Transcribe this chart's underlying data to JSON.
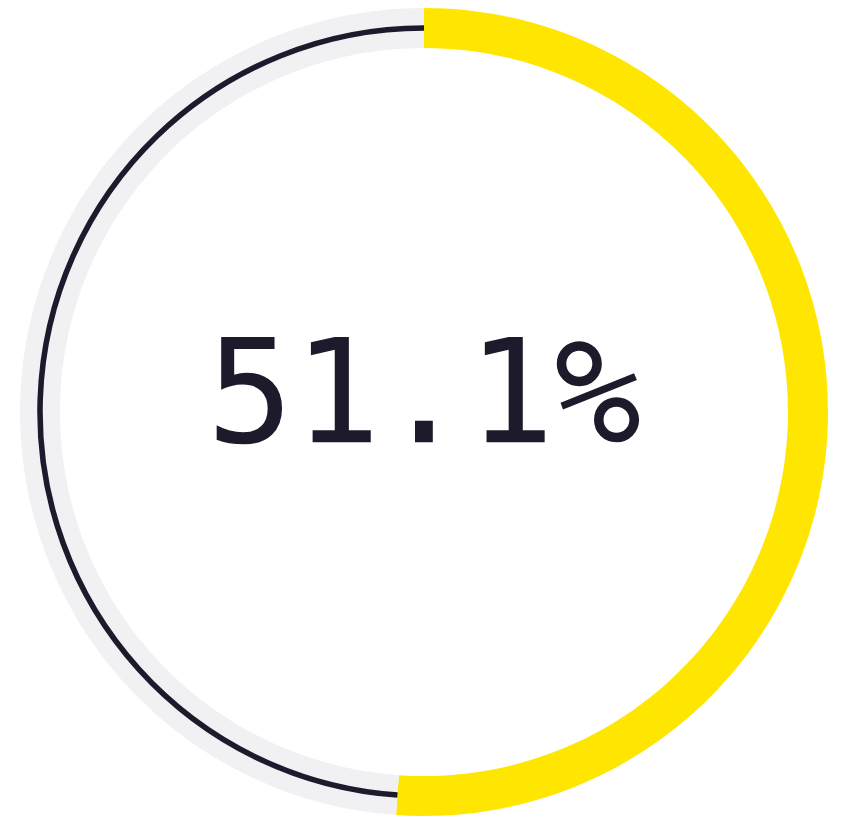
{
  "chart_data": {
    "type": "donut",
    "categories": [
      null,
      null
    ],
    "values": [
      51.1,
      48.9
    ],
    "colors": [
      "#ffe600",
      "#f1f1f4"
    ],
    "value_labels": [
      "51.1%",
      null
    ]
  }
}
